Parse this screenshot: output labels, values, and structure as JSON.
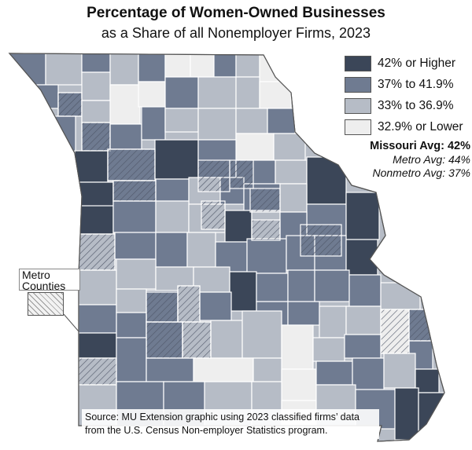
{
  "title": "Percentage of Women-Owned Businesses",
  "subtitle": "as a Share of all Nonemployer Firms, 2023",
  "legend": [
    {
      "label": "42% or Higher",
      "color": "#3b4658"
    },
    {
      "label": "37% to 41.9%",
      "color": "#6f7b91"
    },
    {
      "label": "33% to 36.9%",
      "color": "#b6bcc6"
    },
    {
      "label": "32.9% or Lower",
      "color": "#eeeeee"
    }
  ],
  "averages": {
    "state": "Missouri Avg: 42%",
    "metro": "Metro Avg: 44%",
    "nonmetro": "Nonmetro Avg: 37%"
  },
  "metro_note": {
    "line1": "Metro",
    "line2": "Counties"
  },
  "source": {
    "line1": "Source: MU Extension graphic using 2023 classified firms’ data",
    "line2": "from the U.S. Census Non-employer Statistics program."
  },
  "colors": {
    "stroke": "#ffffff",
    "hatch": "#8a93a3",
    "outline": "#555555"
  }
}
